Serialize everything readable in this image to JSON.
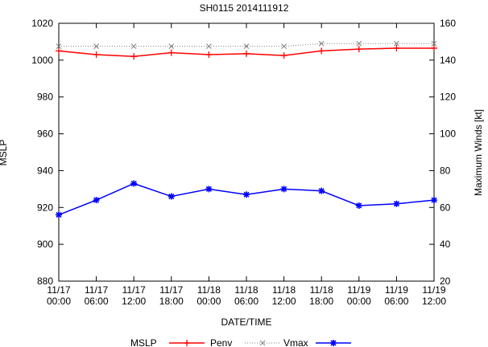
{
  "chart_data": {
    "type": "line",
    "title": "SH0115 2014111912",
    "xlabel": "DATE/TIME",
    "ylabel": "MSLP",
    "y2label": "Maximum Winds [kt]",
    "categories": [
      "11/17\n00:00",
      "11/17\n06:00",
      "11/17\n12:00",
      "11/17\n18:00",
      "11/18\n00:00",
      "11/18\n06:00",
      "11/18\n12:00",
      "11/18\n18:00",
      "11/19\n00:00",
      "11/19\n06:00",
      "11/19\n12:00"
    ],
    "ylim": [
      880,
      1020
    ],
    "yticks": [
      880,
      900,
      920,
      940,
      960,
      980,
      1000,
      1020
    ],
    "y2lim": [
      20,
      160
    ],
    "y2ticks": [
      20,
      40,
      60,
      80,
      100,
      120,
      140,
      160
    ],
    "grid": false,
    "legend_position": "bottom",
    "series": [
      {
        "name": "MSLP",
        "axis": "left",
        "color": "#ff0000",
        "marker": "plus",
        "line": "solid",
        "values": [
          1005,
          1003,
          1002,
          1004,
          1003,
          1003.5,
          1002.5,
          1005,
          1006,
          1006.5,
          1006.5
        ]
      },
      {
        "name": "Penv",
        "axis": "left",
        "color": "#808080",
        "marker": "cross",
        "line": "dotted",
        "values": [
          1007.5,
          1007.5,
          1007.5,
          1007.5,
          1007.5,
          1007.5,
          1007.5,
          1009,
          1009,
          1009,
          1009
        ]
      },
      {
        "name": "Vmax",
        "axis": "right",
        "color": "#0000ff",
        "marker": "star",
        "line": "solid",
        "values": [
          56,
          64,
          73,
          66,
          70,
          67,
          70,
          69,
          61,
          62,
          64
        ]
      }
    ]
  }
}
